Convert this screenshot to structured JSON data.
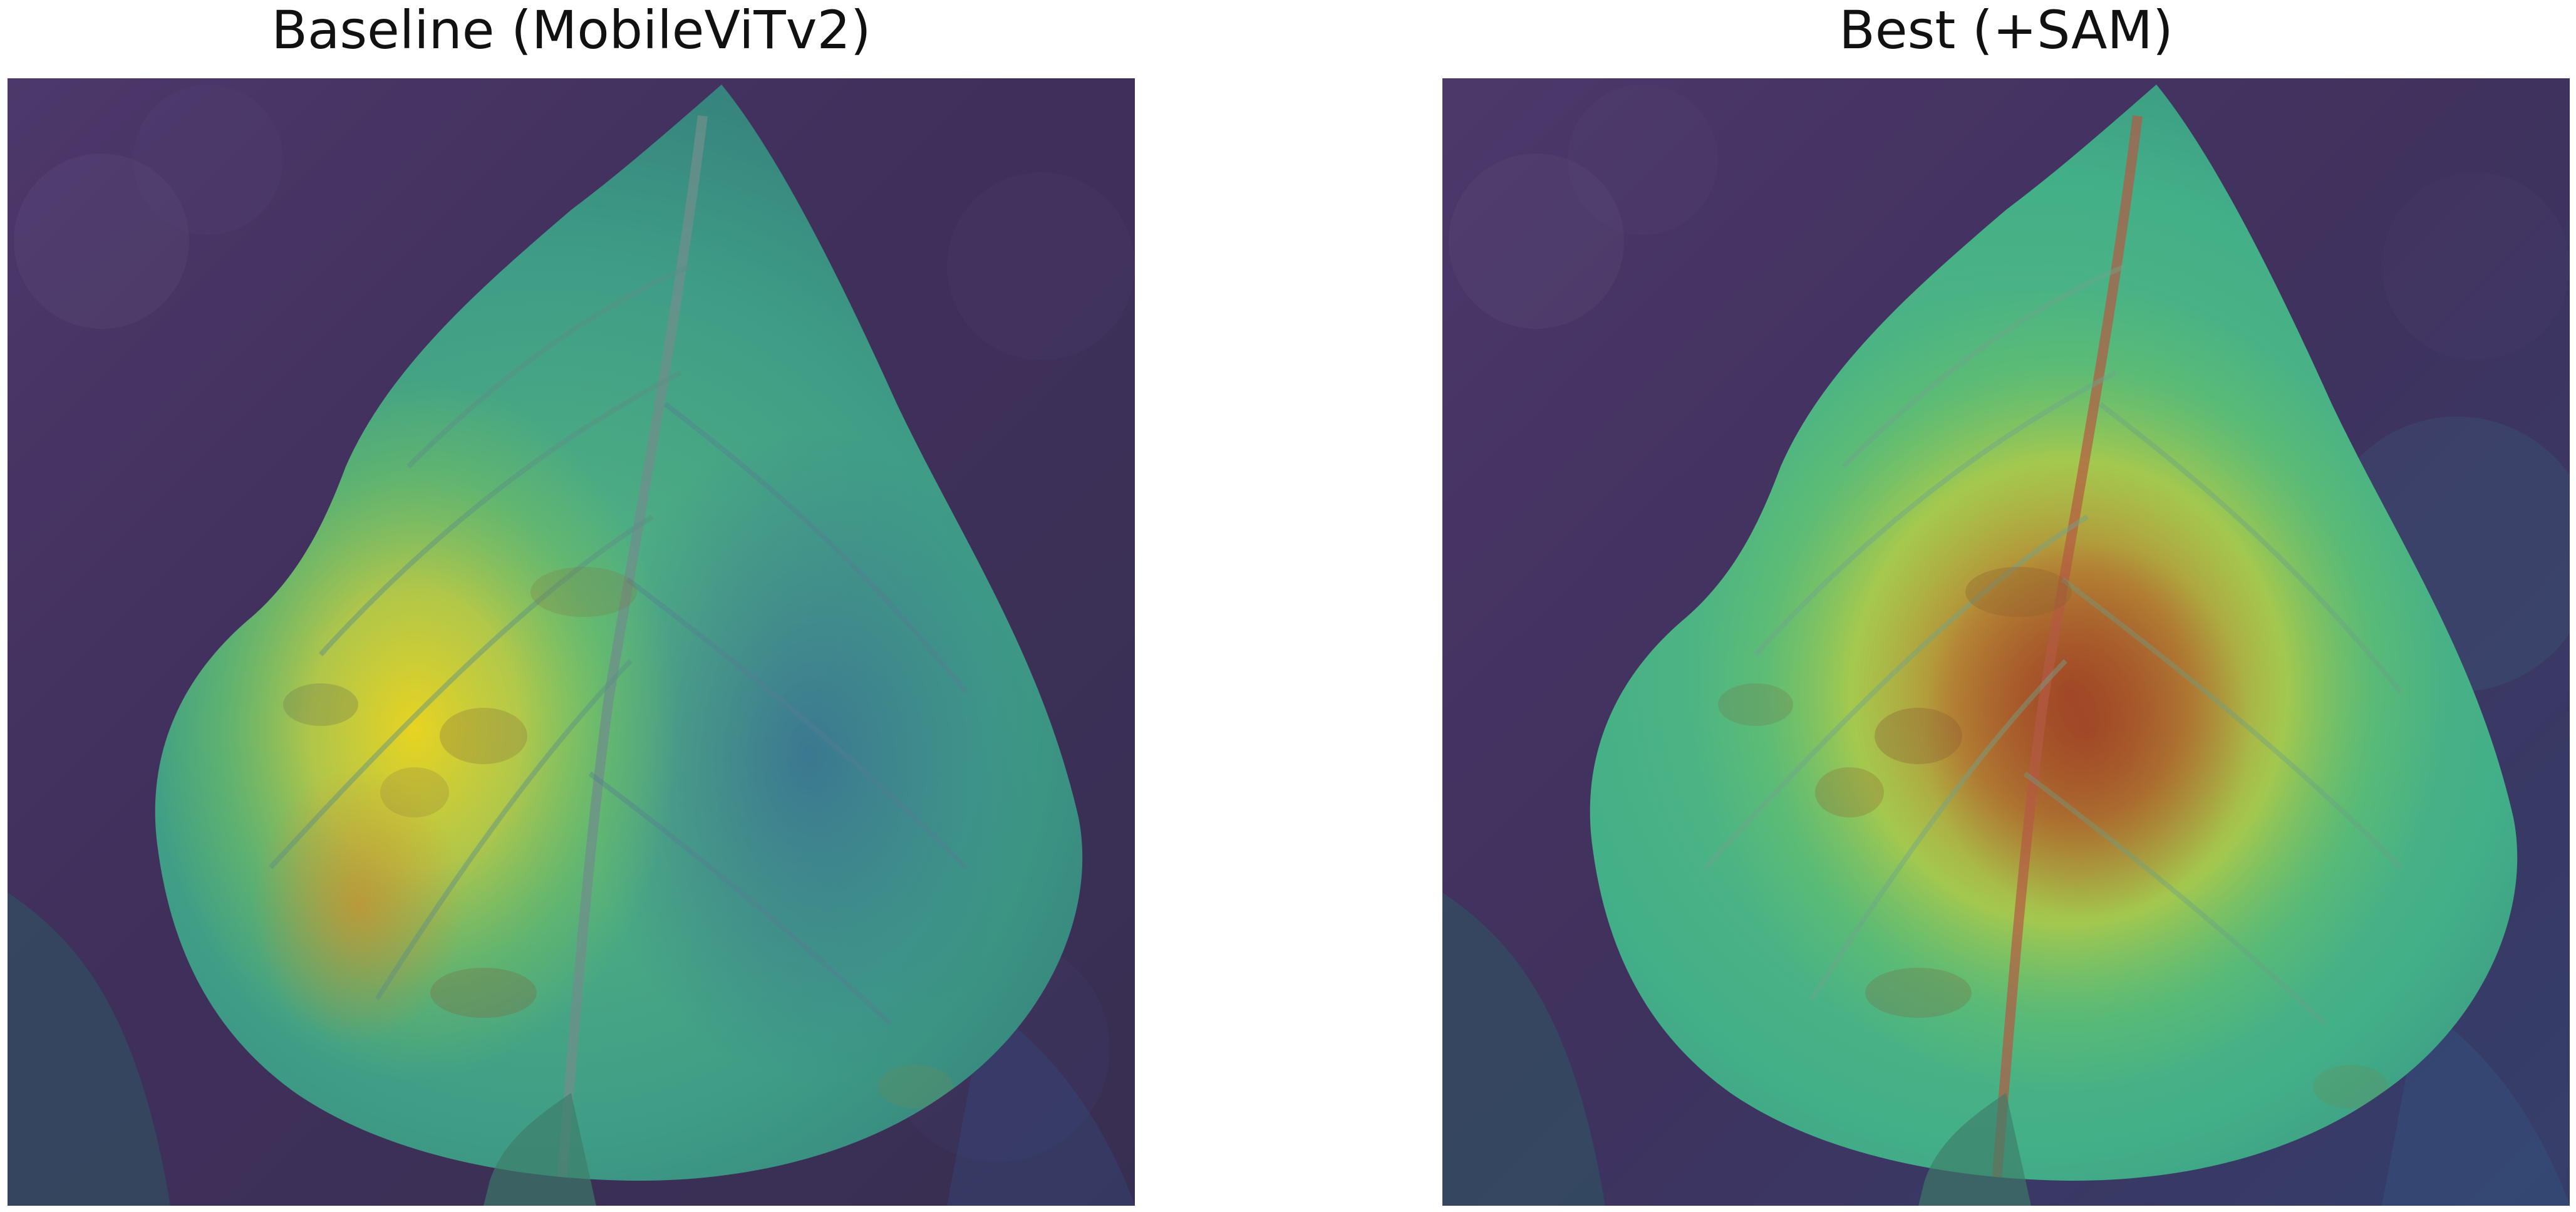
{
  "panels": {
    "left": {
      "title": "Baseline (MobileViTv2)"
    },
    "right": {
      "title": "Best (+SAM)"
    }
  },
  "colors": {
    "background_purple": "#3b2a55",
    "leaf_teal": "#3fae8a",
    "heat_yellow": "#d7d72a",
    "heat_orange": "#c7852d",
    "heat_red": "#a54424",
    "low_blue": "#3a5f9a"
  }
}
